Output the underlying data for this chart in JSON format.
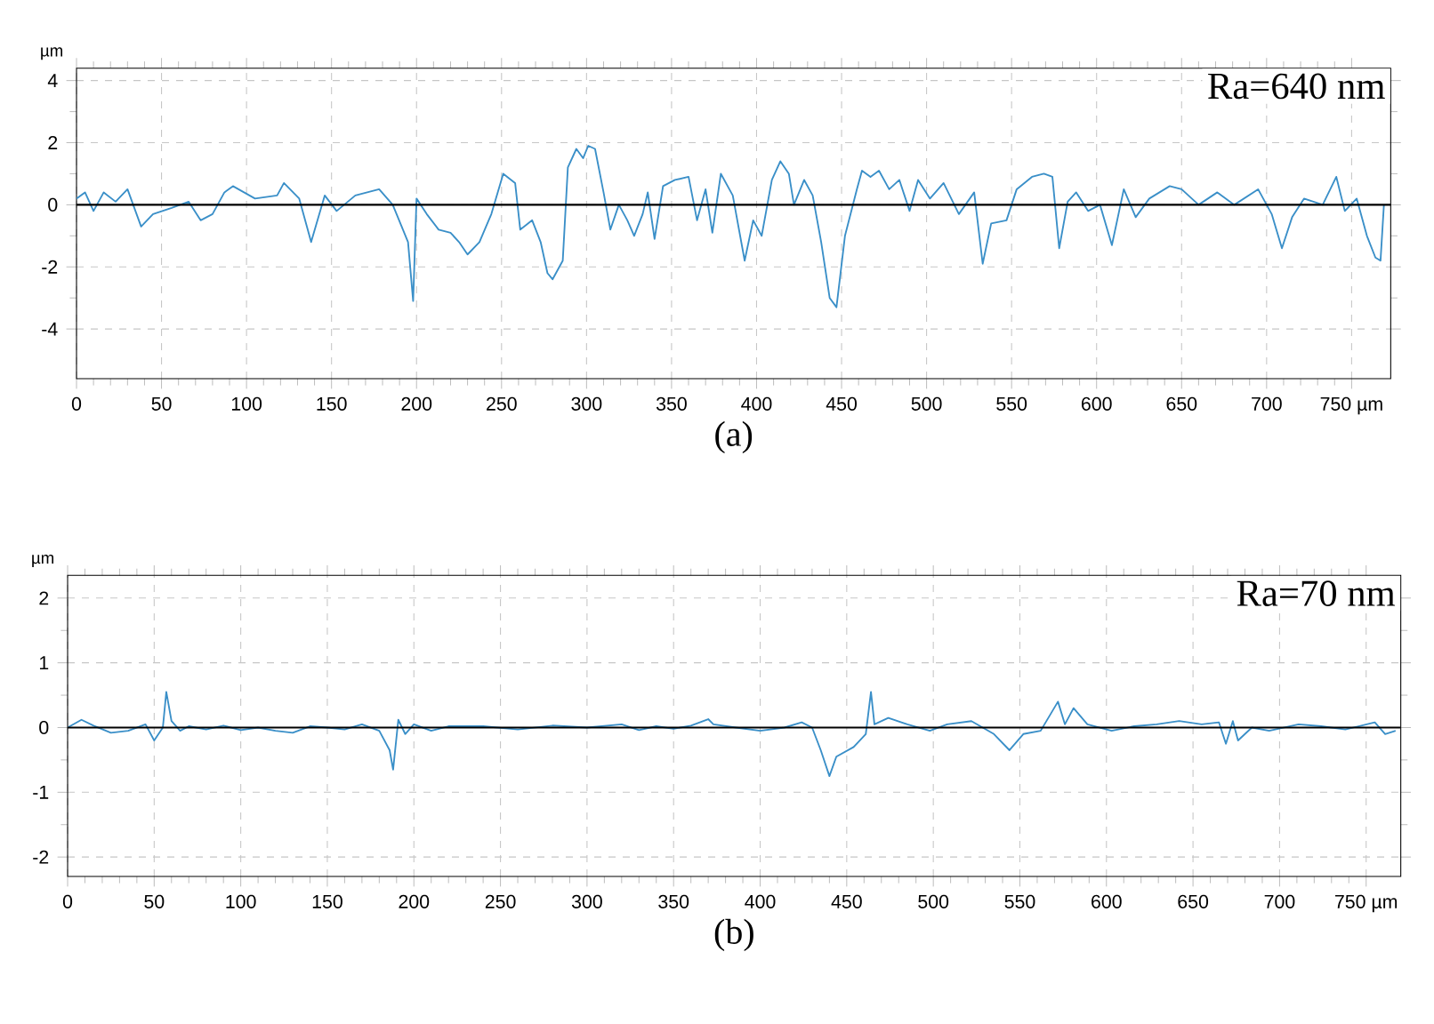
{
  "chart_data": [
    {
      "type": "line",
      "xlabel": "(a)",
      "ylabel": "µm",
      "annotations": [
        "Ra=640 nm"
      ],
      "xlim": [
        0,
        773
      ],
      "ylim": [
        -5.6,
        4.4
      ],
      "xticks": [
        0,
        50,
        100,
        150,
        200,
        250,
        300,
        350,
        400,
        450,
        500,
        550,
        600,
        650,
        700,
        {
          "value": 750,
          "label": "750 µm"
        }
      ],
      "yticks": [
        -4,
        -2,
        0,
        2,
        4
      ],
      "grid": true,
      "ref_lines": [
        {
          "axis": "y",
          "value": 0,
          "color": "#000000"
        }
      ],
      "series": [
        {
          "color": "#3a8fc8",
          "x": [
            0,
            5,
            10,
            16,
            23,
            30,
            38,
            45,
            56,
            66,
            73,
            80,
            87,
            92,
            105,
            118,
            122,
            131,
            138,
            146,
            153,
            164,
            178,
            186,
            195,
            198,
            200,
            206,
            213,
            220,
            225,
            230,
            237,
            244,
            251,
            258,
            261,
            268,
            273,
            277,
            280,
            286,
            289,
            294,
            298,
            301,
            305,
            310,
            314,
            319,
            324,
            328,
            333,
            336,
            340,
            345,
            352,
            360,
            365,
            370,
            374,
            379,
            386,
            393,
            398,
            403,
            409,
            414,
            419,
            422,
            428,
            433,
            438,
            443,
            447,
            452,
            459,
            462,
            467,
            472,
            478,
            484,
            490,
            495,
            502,
            510,
            519,
            528,
            533,
            538,
            547,
            553,
            562,
            569,
            574,
            578,
            583,
            588,
            595,
            602,
            609,
            616,
            623,
            631,
            643,
            650,
            660,
            671,
            681,
            695,
            703,
            709,
            715,
            722,
            733,
            741,
            746,
            753,
            759,
            764,
            767,
            769
          ],
          "values": [
            0.2,
            0.4,
            -0.2,
            0.4,
            0.1,
            0.5,
            -0.7,
            -0.3,
            -0.1,
            0.1,
            -0.5,
            -0.3,
            0.4,
            0.6,
            0.2,
            0.3,
            0.7,
            0.2,
            -1.2,
            0.3,
            -0.2,
            0.3,
            0.5,
            0,
            -1.2,
            -3.1,
            0.2,
            -0.3,
            -0.8,
            -0.9,
            -1.2,
            -1.6,
            -1.2,
            -0.3,
            1.0,
            0.7,
            -0.8,
            -0.5,
            -1.2,
            -2.2,
            -2.4,
            -1.8,
            1.2,
            1.8,
            1.5,
            1.9,
            1.8,
            0.4,
            -0.8,
            0,
            -0.5,
            -1.0,
            -0.3,
            0.4,
            -1.1,
            0.6,
            0.8,
            0.9,
            -0.5,
            0.5,
            -0.9,
            1.0,
            0.3,
            -1.8,
            -0.5,
            -1.0,
            0.8,
            1.4,
            1.0,
            0,
            0.8,
            0.3,
            -1.2,
            -3.0,
            -3.3,
            -1.0,
            0.5,
            1.1,
            0.9,
            1.1,
            0.5,
            0.8,
            -0.2,
            0.8,
            0.2,
            0.7,
            -0.3,
            0.4,
            -1.9,
            -0.6,
            -0.5,
            0.5,
            0.9,
            1.0,
            0.9,
            -1.4,
            0.1,
            0.4,
            -0.2,
            0,
            -1.3,
            0.5,
            -0.4,
            0.2,
            0.6,
            0.5,
            0,
            0.4,
            0,
            0.5,
            -0.3,
            -1.4,
            -0.4,
            0.2,
            0,
            0.9,
            -0.2,
            0.2,
            -1.0,
            -1.7,
            -1.8,
            0
          ]
        }
      ]
    },
    {
      "type": "line",
      "xlabel": "(b)",
      "ylabel": "µm",
      "annotations": [
        "Ra=70 nm"
      ],
      "xlim": [
        0,
        770
      ],
      "ylim": [
        -2.3,
        2.35
      ],
      "xticks": [
        0,
        50,
        100,
        150,
        200,
        250,
        300,
        350,
        400,
        450,
        500,
        550,
        600,
        650,
        700,
        {
          "value": 750,
          "label": "750 µm"
        }
      ],
      "yticks": [
        -2,
        -1,
        0,
        1,
        2
      ],
      "grid": true,
      "ref_lines": [
        {
          "axis": "y",
          "value": 0,
          "color": "#000000"
        }
      ],
      "series": [
        {
          "color": "#3a8fc8",
          "x": [
            0,
            8,
            15,
            25,
            35,
            45,
            50,
            55,
            57,
            60,
            65,
            70,
            80,
            90,
            100,
            110,
            120,
            130,
            140,
            150,
            160,
            170,
            180,
            186,
            188,
            191,
            195,
            200,
            210,
            220,
            240,
            260,
            280,
            300,
            320,
            330,
            340,
            350,
            360,
            370,
            373,
            386,
            400,
            414,
            424,
            430,
            435,
            440,
            444,
            454,
            461,
            464,
            466,
            474,
            485,
            498,
            508,
            522,
            535,
            544,
            552,
            562,
            572,
            576,
            581,
            589,
            603,
            616,
            629,
            642,
            655,
            665,
            669,
            673,
            676,
            684,
            694,
            711,
            724,
            738,
            755,
            761,
            767
          ],
          "values": [
            0,
            0.12,
            0.03,
            -0.08,
            -0.05,
            0.05,
            -0.2,
            0,
            0.55,
            0.1,
            -0.05,
            0.02,
            -0.03,
            0.03,
            -0.04,
            0,
            -0.05,
            -0.08,
            0.02,
            0,
            -0.03,
            0.05,
            -0.05,
            -0.35,
            -0.65,
            0.12,
            -0.1,
            0.05,
            -0.05,
            0.02,
            0.02,
            -0.03,
            0.03,
            0,
            0.05,
            -0.04,
            0.02,
            -0.02,
            0.03,
            0.13,
            0.05,
            0,
            -0.05,
            0,
            0.08,
            0,
            -0.35,
            -0.75,
            -0.45,
            -0.3,
            -0.1,
            0.55,
            0.05,
            0.15,
            0.05,
            -0.05,
            0.05,
            0.1,
            -0.1,
            -0.35,
            -0.1,
            -0.05,
            0.4,
            0.05,
            0.3,
            0.05,
            -0.05,
            0.02,
            0.05,
            0.1,
            0.05,
            0.08,
            -0.25,
            0.1,
            -0.2,
            0,
            -0.05,
            0.05,
            0.02,
            -0.03,
            0.08,
            -0.1,
            -0.05
          ]
        }
      ]
    }
  ]
}
